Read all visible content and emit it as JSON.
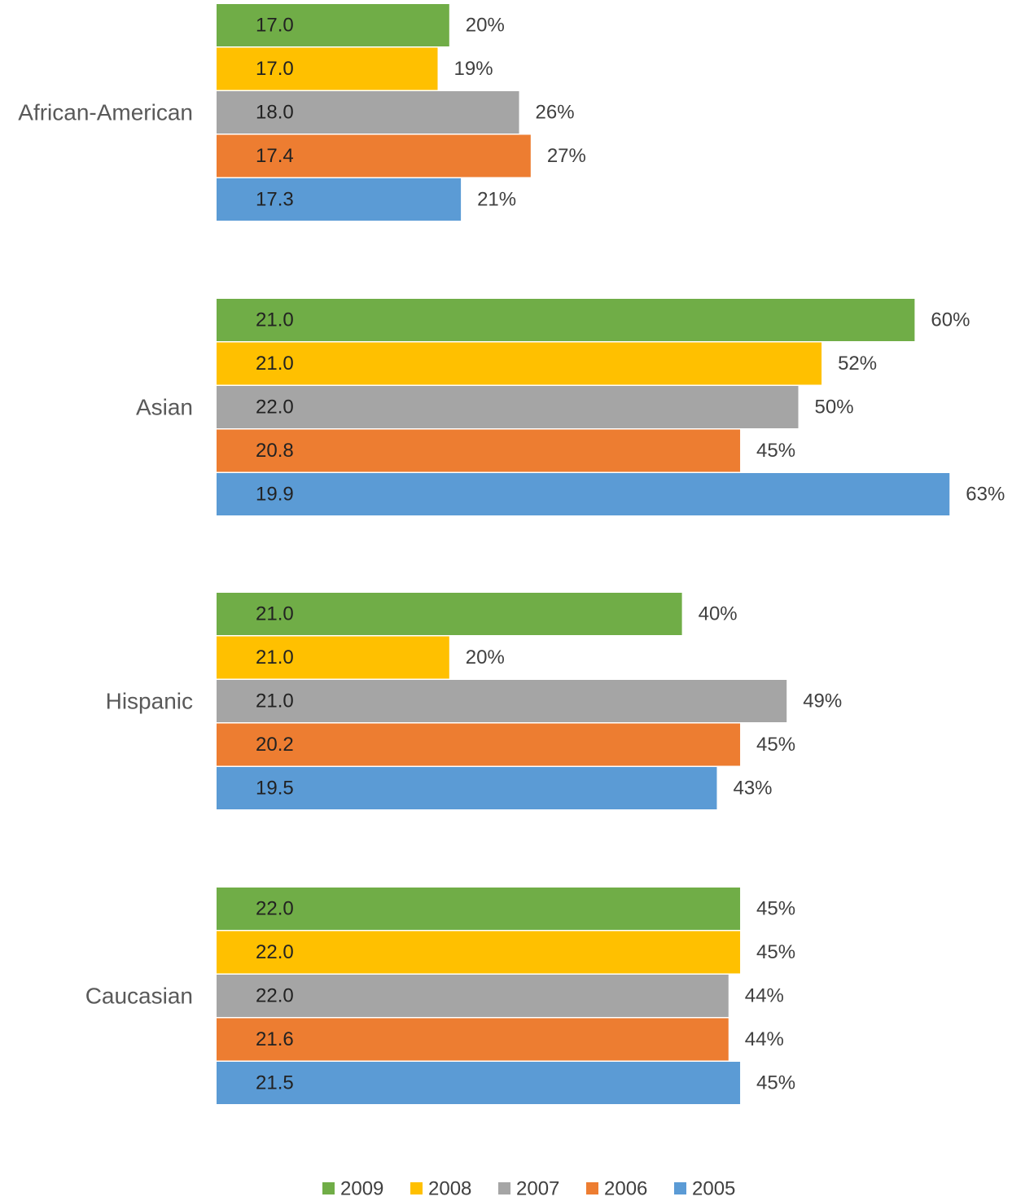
{
  "chart_data": {
    "type": "bar",
    "orientation": "horizontal",
    "title": "",
    "xlabel": "",
    "ylabel": "",
    "grid": false,
    "legend_position": "bottom",
    "bar_length_measure": "percent",
    "xlim": [
      0,
      63
    ],
    "categories": [
      "African-American",
      "Asian",
      "Hispanic",
      "Caucasian"
    ],
    "series": [
      {
        "name": "2009",
        "color": "#70AD47",
        "values": [
          "17.0",
          "21.0",
          "21.0",
          "22.0"
        ],
        "percents": [
          20,
          60,
          40,
          45
        ],
        "percent_labels": [
          "20%",
          "60%",
          "40%",
          "45%"
        ]
      },
      {
        "name": "2008",
        "color": "#FFC000",
        "values": [
          "17.0",
          "21.0",
          "21.0",
          "22.0"
        ],
        "percents": [
          19,
          52,
          20,
          45
        ],
        "percent_labels": [
          "19%",
          "52%",
          "20%",
          "45%"
        ]
      },
      {
        "name": "2007",
        "color": "#A5A5A5",
        "values": [
          "18.0",
          "22.0",
          "21.0",
          "22.0"
        ],
        "percents": [
          26,
          50,
          49,
          44
        ],
        "percent_labels": [
          "26%",
          "50%",
          "49%",
          "44%"
        ]
      },
      {
        "name": "2006",
        "color": "#ED7D31",
        "values": [
          "17.4",
          "20.8",
          "20.2",
          "21.6"
        ],
        "percents": [
          27,
          45,
          45,
          44
        ],
        "percent_labels": [
          "27%",
          "45%",
          "45%",
          "44%"
        ]
      },
      {
        "name": "2005",
        "color": "#5B9BD5",
        "values": [
          "17.3",
          "19.9",
          "19.5",
          "21.5"
        ],
        "percents": [
          21,
          63,
          43,
          45
        ],
        "percent_labels": [
          "21%",
          "63%",
          "43%",
          "45%"
        ]
      }
    ]
  }
}
